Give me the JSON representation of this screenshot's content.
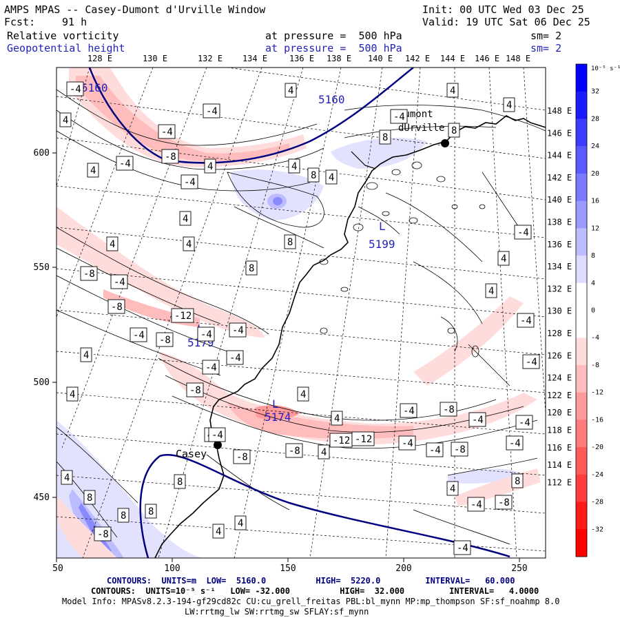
{
  "header": {
    "title": "AMPS MPAS -- Casey-Dumont d'Urville Window",
    "init": "Init: 00 UTC Wed 03 Dec 25",
    "fcst_label": "Fcst:",
    "fcst_value": "91 h",
    "valid": "Valid: 19 UTC Sat 06 Dec 25",
    "field1": {
      "name": "Relative vorticity",
      "level": "at pressure =  500 hPa",
      "sm": "sm= 2"
    },
    "field2": {
      "name": "Geopotential height",
      "level": "at pressure =  500 hPa",
      "sm": "sm= 2"
    }
  },
  "axes": {
    "x_ticks": [
      "50",
      "100",
      "150",
      "200",
      "250"
    ],
    "y_ticks": [
      "600",
      "550",
      "500",
      "450"
    ],
    "top_lon": [
      "128 E",
      "130 E",
      "132 E",
      "134 E",
      "136 E",
      "138 E",
      "140 E",
      "142 E",
      "144 E",
      "146 E",
      "148 E"
    ],
    "right_lat": [
      "148 E",
      "146 E",
      "144 E",
      "142 E",
      "140 E",
      "138 E",
      "136 E",
      "134 E",
      "132 E",
      "130 E",
      "128 E",
      "126 E",
      "124 E",
      "122 E",
      "120 E",
      "118 E",
      "116 E",
      "114 E",
      "112 E"
    ]
  },
  "colorbar": {
    "unit": "10⁻⁵ s⁻¹",
    "labels": [
      "32",
      "28",
      "24",
      "20",
      "16",
      "12",
      "8",
      "4",
      "0",
      "-4",
      "-8",
      "-12",
      "-16",
      "-20",
      "-24",
      "-28",
      "-32"
    ],
    "colors": [
      "#0000ff",
      "#1a1aff",
      "#3c3cff",
      "#5a5aff",
      "#7a7aff",
      "#9a9aff",
      "#bcbcff",
      "#dcdcff",
      "#ffffff",
      "#ffffff",
      "#ffdcdc",
      "#ffbcbc",
      "#ff9a9a",
      "#ff7a7a",
      "#ff5a5a",
      "#ff3c3c",
      "#ff1a1a",
      "#ff0000"
    ]
  },
  "map": {
    "stations": [
      {
        "name": "Casey"
      },
      {
        "name": "Dumont\ndUrville"
      }
    ],
    "height_labels": [
      "5160",
      "5160",
      "5199",
      "5179",
      "5174"
    ],
    "vort_labels": [
      "4",
      "-4",
      "8",
      "-8",
      "-12"
    ]
  },
  "footer": {
    "line1": "CONTOURS:  UNITS=m  LOW=  5160.0          HIGH=  5220.0         INTERVAL=   60.000",
    "line2": "CONTOURS:  UNITS=10⁻⁵ s⁻¹   LOW= -32.000          HIGH=  32.000         INTERVAL=   4.0000",
    "line3": "Model Info: MPASv8.2.3-194-gf29cd82c CU:cu_grell_freitas PBL:bl_mynn MP:mp_thompson SF:sf_noahmp 8.0",
    "line4": "LW:rrtmg_lw SW:rrtmg_sw SFLAY:sf_mynn"
  }
}
